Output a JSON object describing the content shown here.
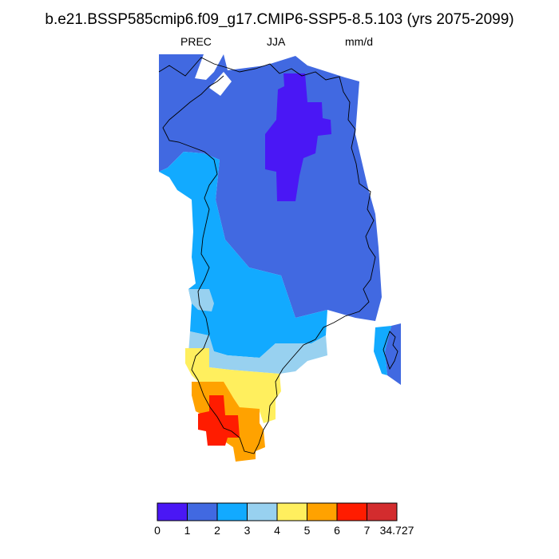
{
  "title": "b.e21.BSSP585cmip6.f09_g17.CMIP6-SSP5-8.5.103 (yrs 2075-2099)",
  "subtitle_left": "PREC",
  "subtitle_center": "JJA",
  "subtitle_right": "mm/d",
  "colorbar": {
    "labels": [
      "0",
      "1",
      "2",
      "3",
      "4",
      "5",
      "6",
      "7",
      "34.727"
    ],
    "colors": [
      "#4a17f5",
      "#4169e1",
      "#12aaff",
      "#98d1f0",
      "#ffef5e",
      "#ffa200",
      "#ff1c00",
      "#d32c2e"
    ]
  },
  "map": {
    "region": "Greenland",
    "variable": "PREC",
    "season": "JJA",
    "units": "mm/d"
  }
}
